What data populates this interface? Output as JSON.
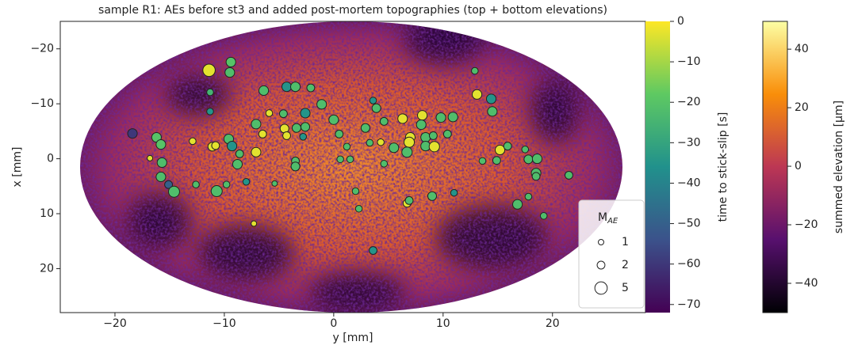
{
  "chart_data": {
    "type": "scatter",
    "title": "sample R1: AEs before st3 and added post-mortem topographies (top + bottom elevations)",
    "xlabel": "y [mm]",
    "ylabel": "x [mm]",
    "xlim": [
      -25,
      28.5
    ],
    "ylim": [
      28,
      -25
    ],
    "xticks": [
      {
        "value": -20,
        "label": "−20"
      },
      {
        "value": -10,
        "label": "−10"
      },
      0,
      10,
      20
    ],
    "yticks": [
      {
        "value": -20,
        "label": "−20"
      },
      {
        "value": -10,
        "label": "−10"
      },
      0,
      10,
      20
    ],
    "x": [
      -11.4,
      -9.4,
      -9.5,
      -11.3,
      -11.3,
      -18.4,
      -16.2,
      -15.8,
      -16.8,
      -15.7,
      -15.8,
      -15.1,
      -14.6,
      -12.6,
      -12.9,
      -11.1,
      -10.8,
      -9.6,
      -9.3,
      -8.6,
      -8.8,
      -10.7,
      -9.8,
      -8.0,
      -7.1,
      -7.1,
      -6.4,
      -5.9,
      -4.6,
      -4.3,
      -3.5,
      -2.1,
      -4.5,
      -4.3,
      -3.4,
      -2.6,
      -2.8,
      -2.6,
      -1.1,
      0,
      -3.5,
      -3.5,
      -6.5,
      -7.3,
      -5.4,
      3.6,
      3.9,
      2.9,
      0.5,
      1.2,
      0.6,
      1.5,
      3.3,
      4.3,
      4.6,
      4.6,
      5.5,
      6.3,
      7.0,
      6.9,
      6.7,
      8.1,
      8.0,
      8.4,
      8.4,
      9.2,
      9.1,
      9.8,
      10.9,
      10.4,
      2.0,
      2.3,
      6.7,
      6.9,
      9.0,
      11.0,
      3.6,
      12.9,
      13.1,
      14.4,
      14.5,
      15.2,
      15.9,
      13.6,
      14.9,
      17.5,
      17.8,
      18.6,
      18.5,
      18.5,
      21.5,
      17.8,
      16.8,
      19.2
    ],
    "y": [
      -16.1,
      -17.6,
      -15.7,
      -12.1,
      -8.6,
      -4.6,
      -3.9,
      -2.6,
      -0.1,
      0.7,
      3.3,
      4.7,
      6.0,
      4.7,
      -3.2,
      -2.2,
      -2.4,
      -3.6,
      -2.3,
      -0.9,
      1.0,
      5.9,
      4.7,
      4.2,
      -1.2,
      -6.3,
      -12.4,
      -8.3,
      -8.2,
      -13.1,
      -13.1,
      -12.9,
      -5.5,
      -4.2,
      -5.6,
      -5.8,
      -4.0,
      -8.3,
      -9.9,
      -7.1,
      0.4,
      1.4,
      -4.5,
      11.8,
      4.5,
      -10.6,
      -9.2,
      -5.6,
      -4.5,
      -2.2,
      0.1,
      0.1,
      -2.9,
      -3.0,
      -6.8,
      0.9,
      -2.0,
      -7.3,
      -3.9,
      -3.0,
      -1.2,
      -7.9,
      -6.2,
      -3.9,
      -2.3,
      -2.2,
      -4.2,
      -7.5,
      -7.6,
      -4.5,
      5.9,
      9.1,
      8.1,
      7.6,
      6.8,
      6.2,
      16.7,
      -16.0,
      -11.7,
      -10.9,
      -8.6,
      -1.6,
      -2.3,
      0.4,
      0.3,
      -1.7,
      0.1,
      0,
      2.6,
      3.2,
      3.0,
      6.9,
      8.3,
      10.4
    ],
    "color_values": [
      -3,
      -20,
      -22,
      -25,
      -35,
      -60,
      -20,
      -20,
      -3,
      -22,
      -22,
      -50,
      -22,
      -22,
      -3,
      -3,
      -3,
      -22,
      -35,
      -22,
      -22,
      -22,
      -22,
      -35,
      -3,
      -22,
      -22,
      -3,
      -22,
      -35,
      -22,
      -22,
      -3,
      -3,
      -22,
      -22,
      -35,
      -35,
      -22,
      -22,
      -22,
      -22,
      -3,
      -3,
      -22,
      -35,
      -22,
      -22,
      -22,
      -22,
      -22,
      -22,
      -22,
      -3,
      -22,
      -22,
      -22,
      -3,
      -3,
      -3,
      -22,
      -3,
      -22,
      -22,
      -22,
      -3,
      -22,
      -22,
      -22,
      -22,
      -22,
      -22,
      -3,
      -22,
      -22,
      -35,
      -35,
      -22,
      -3,
      -35,
      -22,
      -3,
      -22,
      -22,
      -22,
      -22,
      -22,
      -22,
      -22,
      -22,
      -22,
      -22,
      -22,
      -22
    ],
    "sizes": [
      5,
      3,
      3,
      1.5,
      1.5,
      3,
      3,
      3,
      1,
      3,
      3,
      2,
      4,
      1.5,
      1.5,
      2.5,
      2,
      3,
      3,
      2,
      3,
      4,
      1.5,
      1.5,
      3,
      3,
      3,
      1.5,
      2,
      3,
      3,
      2,
      2.5,
      2,
      2.5,
      2.5,
      1.5,
      3,
      3,
      3,
      2,
      2.5,
      2,
      1,
      1,
      1.5,
      2.5,
      2.5,
      2,
      1.5,
      1.5,
      1.5,
      1.5,
      1.5,
      2,
      1.5,
      3,
      3,
      3,
      3.5,
      3.5,
      3,
      3,
      3,
      3,
      3.5,
      2,
      3,
      3,
      2,
      1.5,
      1.5,
      2,
      2,
      2.5,
      1.5,
      2,
      1.5,
      3,
      3,
      3,
      3,
      2,
      1.5,
      2,
      1.5,
      2.5,
      3,
      3,
      2,
      2,
      1.5,
      3,
      1.5
    ],
    "colorbar": {
      "label": "time to stick-slip [s]",
      "lim": [
        -72,
        0
      ],
      "ticks": [
        0,
        {
          "value": -10,
          "label": "−10"
        },
        {
          "value": -20,
          "label": "−20"
        },
        {
          "value": -30,
          "label": "−30"
        },
        {
          "value": -40,
          "label": "−40"
        },
        {
          "value": -50,
          "label": "−50"
        },
        {
          "value": -60,
          "label": "−60"
        },
        {
          "value": -70,
          "label": "−70"
        }
      ]
    },
    "colorbar2": {
      "label": "summed elevation [μm]",
      "lim": [
        -50,
        49.5
      ],
      "ticks": [
        40,
        20,
        0,
        {
          "value": -20,
          "label": "−20"
        },
        {
          "value": -40,
          "label": "−40"
        }
      ]
    },
    "legend": {
      "title": "M",
      "title_sub": "AE",
      "sizes": [
        1,
        2,
        5
      ]
    }
  }
}
